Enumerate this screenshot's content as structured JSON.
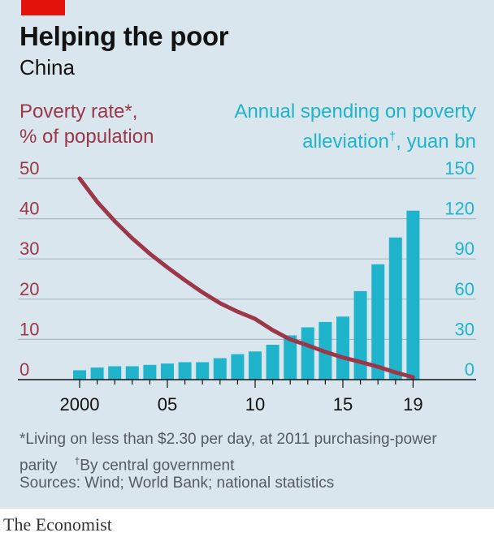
{
  "header": {
    "title": "Helping the poor",
    "subtitle": "China"
  },
  "axis_labels": {
    "left_line1": "Poverty rate*,",
    "left_line2": "% of population",
    "right_line1": "Annual spending on poverty",
    "right_line2_text": "alleviation",
    "right_line2_mark": "†",
    "right_line2_suffix": ", yuan bn"
  },
  "footnotes": {
    "line1": "*Living on less than $2.30 per day, at 2011 purchasing-power",
    "line2_a": "parity",
    "line2_mark": "†",
    "line2_b": "By central government",
    "sources": "Sources: Wind; World Bank; national statistics"
  },
  "brand": "The Economist",
  "colors": {
    "background": "#d9e6ee",
    "poverty_line": "#9b3748",
    "spending_bars": "#1fb4cc",
    "brand_red": "#e3120b"
  },
  "chart_data": {
    "type": "bar+line",
    "title": "Helping the poor",
    "subtitle": "China",
    "x_ticks": [
      "2000",
      "05",
      "10",
      "15",
      "19"
    ],
    "x_tick_years": [
      2000,
      2005,
      2010,
      2015,
      2019
    ],
    "left_axis": {
      "label": "Poverty rate*, % of population",
      "ticks": [
        "50",
        "40",
        "30",
        "20",
        "10",
        "0"
      ],
      "range": [
        0,
        50
      ]
    },
    "right_axis": {
      "label": "Annual spending on poverty alleviation†, yuan bn",
      "ticks": [
        "150",
        "120",
        "90",
        "60",
        "30",
        "0"
      ],
      "range": [
        0,
        150
      ]
    },
    "bars": {
      "name": "Annual spending on poverty alleviation, yuan bn",
      "years": [
        2000,
        2001,
        2002,
        2003,
        2004,
        2005,
        2006,
        2007,
        2008,
        2009,
        2010,
        2011,
        2012,
        2013,
        2014,
        2015,
        2016,
        2017,
        2018,
        2019
      ],
      "values": [
        7,
        9,
        10,
        10,
        11,
        12,
        13,
        13,
        16,
        19,
        21,
        26,
        33,
        39,
        43,
        47,
        66,
        86,
        106,
        126
      ]
    },
    "line": {
      "name": "Poverty rate, % of population",
      "years": [
        2000,
        2001,
        2002,
        2003,
        2004,
        2005,
        2006,
        2007,
        2008,
        2009,
        2010,
        2011,
        2012,
        2013,
        2014,
        2015,
        2016,
        2017,
        2018,
        2019
      ],
      "values": [
        50,
        44.2,
        39.4,
        35.1,
        31.3,
        27.9,
        24.7,
        21.7,
        19,
        16.9,
        15.1,
        12.3,
        10,
        8.5,
        6.9,
        5.5,
        4.4,
        3.2,
        1.8,
        0.6
      ]
    }
  }
}
